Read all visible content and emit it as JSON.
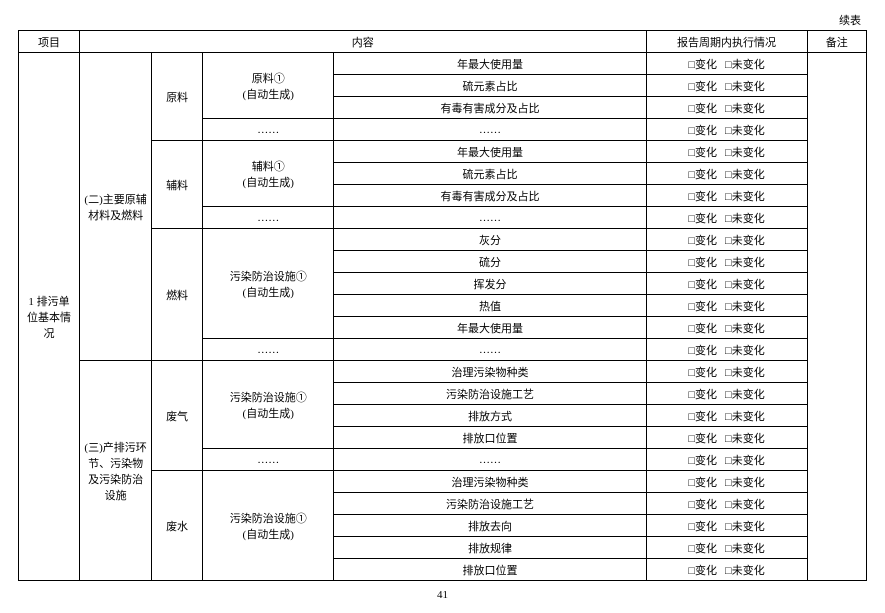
{
  "cont_label": "续表",
  "page_number": "41",
  "headers": {
    "project": "项目",
    "content": "内容",
    "status": "报告周期内执行情况",
    "remark": "备注"
  },
  "opt_change": "变化",
  "opt_nochange": "未变化",
  "col1_main": "1 排污单位基本情况",
  "sec2_title": "(二)主要原辅材料及燃料",
  "sec3_title": "(三)产排污环节、污染物及污染防治设施",
  "grp_raw": "原料",
  "grp_aux": "辅料",
  "grp_fuel": "燃料",
  "grp_gas": "废气",
  "grp_water": "废水",
  "raw_line1": "原料①",
  "raw_line2": "(自动生成)",
  "aux_line1": "辅料①",
  "aux_line2": "(自动生成)",
  "fac_line1": "污染防治设施①",
  "fac_line2": "(自动生成)",
  "ellipsis": "……",
  "r_max_use": "年最大使用量",
  "r_sulfur_ratio": "硫元素占比",
  "r_toxic_ratio": "有毒有害成分及占比",
  "r_ash": "灰分",
  "r_sulfur_content": "硫分",
  "r_volatile": "挥发分",
  "r_heat": "热值",
  "r_poll_type": "治理污染物种类",
  "r_process": "污染防治设施工艺",
  "r_emit_mode": "排放方式",
  "r_outlet_pos": "排放口位置",
  "r_discharge_dir": "排放去向",
  "r_discharge_law": "排放规律"
}
